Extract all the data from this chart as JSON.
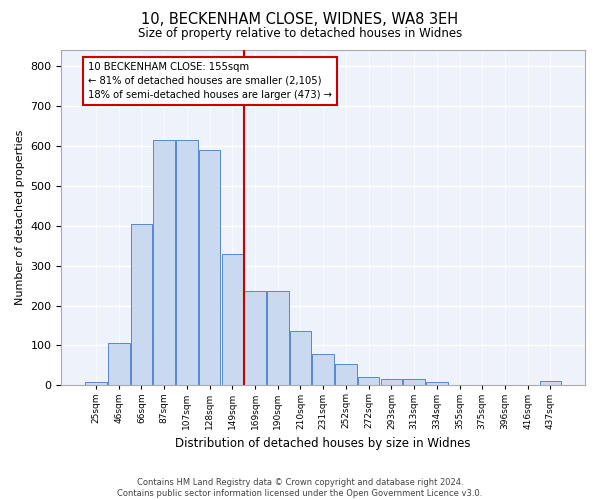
{
  "title": "10, BECKENHAM CLOSE, WIDNES, WA8 3EH",
  "subtitle": "Size of property relative to detached houses in Widnes",
  "xlabel": "Distribution of detached houses by size in Widnes",
  "ylabel": "Number of detached properties",
  "bar_labels": [
    "25sqm",
    "46sqm",
    "66sqm",
    "87sqm",
    "107sqm",
    "128sqm",
    "149sqm",
    "169sqm",
    "190sqm",
    "210sqm",
    "231sqm",
    "252sqm",
    "272sqm",
    "293sqm",
    "313sqm",
    "334sqm",
    "355sqm",
    "375sqm",
    "396sqm",
    "416sqm",
    "437sqm"
  ],
  "bar_values": [
    8,
    105,
    403,
    615,
    615,
    590,
    330,
    237,
    237,
    135,
    78,
    53,
    22,
    15,
    15,
    8,
    0,
    0,
    0,
    0,
    10
  ],
  "bar_color": "#c9d9f0",
  "bar_edgecolor": "#5588cc",
  "property_line_label": "10 BECKENHAM CLOSE: 155sqm",
  "pct_smaller": "81% of detached houses are smaller (2,105)",
  "pct_larger": "18% of semi-detached houses are larger (473)",
  "annotation_box_color": "#cc0000",
  "ylim": [
    0,
    840
  ],
  "yticks": [
    0,
    100,
    200,
    300,
    400,
    500,
    600,
    700,
    800
  ],
  "footer1": "Contains HM Land Registry data © Crown copyright and database right 2024.",
  "footer2": "Contains public sector information licensed under the Open Government Licence v3.0.",
  "bg_color": "#edf2fb",
  "fig_bg": "#ffffff"
}
